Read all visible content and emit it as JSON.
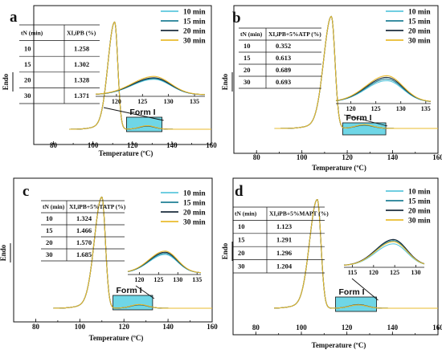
{
  "figure": {
    "colors": {
      "10 min": "#5bc7dd",
      "15 min": "#1f7f95",
      "20 min": "#1b2d3d",
      "30 min": "#e9bb2e",
      "highlight": "#6fd6e6"
    }
  },
  "chart_data": [
    {
      "type": "line",
      "panel_label": "a",
      "xlabel": "Temperature (ºC)",
      "ylabel": "Endo",
      "xlim": [
        70,
        160
      ],
      "xticks": [
        "80",
        "100",
        "120",
        "140",
        "160"
      ],
      "legend": [
        "10 min",
        "15 min",
        "20 min",
        "30 min"
      ],
      "legend_position": "top-right",
      "series": [
        {
          "name": "10 min",
          "peak_x": 111.0,
          "formI_peak_x": 127.5,
          "formI_height": 0.8
        },
        {
          "name": "15 min",
          "peak_x": 111.0,
          "formI_peak_x": 127.5,
          "formI_height": 0.84
        },
        {
          "name": "20 min",
          "peak_x": 111.0,
          "formI_peak_x": 127.5,
          "formI_height": 0.88
        },
        {
          "name": "30 min",
          "peak_x": 111.0,
          "formI_peak_x": 127.5,
          "formI_height": 0.95
        }
      ],
      "table": {
        "header_t": "tN (min)",
        "header_x": "XI,iPB (%)",
        "rows": [
          [
            "10",
            "1.258"
          ],
          [
            "15",
            "1.302"
          ],
          [
            "20",
            "1.328"
          ],
          [
            "30",
            "1.371"
          ]
        ]
      },
      "inset": {
        "xlim": [
          116,
          137
        ],
        "xticks": [
          "120",
          "125",
          "130",
          "135"
        ]
      },
      "highlight_range": [
        117,
        135
      ],
      "annotation": "Form I"
    },
    {
      "type": "line",
      "panel_label": "b",
      "xlabel": "Temperature (ºC)",
      "ylabel": "Endo",
      "xlim": [
        70,
        160
      ],
      "xticks": [
        "80",
        "100",
        "120",
        "140",
        "160"
      ],
      "legend": [
        "10 min",
        "15 min",
        "20 min",
        "30 min"
      ],
      "legend_position": "top-right",
      "series": [
        {
          "name": "10 min",
          "peak_x": 113.0,
          "formI_peak_x": 127.5,
          "formI_height": 0.78
        },
        {
          "name": "15 min",
          "peak_x": 113.0,
          "formI_peak_x": 127.5,
          "formI_height": 0.84
        },
        {
          "name": "20 min",
          "peak_x": 113.0,
          "formI_peak_x": 127.5,
          "formI_height": 0.9
        },
        {
          "name": "30 min",
          "peak_x": 113.0,
          "formI_peak_x": 127.5,
          "formI_height": 0.96
        }
      ],
      "table": {
        "header_t": "tN (min)",
        "header_x": "XI,iPB+5%ATP (%)",
        "rows": [
          [
            "10",
            "0.352"
          ],
          [
            "15",
            "0.613"
          ],
          [
            "20",
            "0.689"
          ],
          [
            "30",
            "0.693"
          ]
        ]
      },
      "inset": {
        "xlim": [
          117,
          136
        ],
        "xticks": [
          "120",
          "125",
          "130",
          "135"
        ]
      },
      "highlight_range": [
        118,
        137
      ],
      "annotation": "Form I"
    },
    {
      "type": "line",
      "panel_label": "c",
      "xlabel": "Temperature (ºC)",
      "ylabel": "Endo",
      "xlim": [
        70,
        160
      ],
      "xticks": [
        "80",
        "100",
        "120",
        "140",
        "160"
      ],
      "legend": [
        "10 min",
        "15 min",
        "20 min",
        "30 min"
      ],
      "legend_position": "top-right",
      "series": [
        {
          "name": "10 min",
          "peak_x": 110.0,
          "formI_peak_x": 127.0,
          "formI_height": 0.82
        },
        {
          "name": "15 min",
          "peak_x": 110.0,
          "formI_peak_x": 127.0,
          "formI_height": 0.87
        },
        {
          "name": "20 min",
          "peak_x": 110.0,
          "formI_peak_x": 127.0,
          "formI_height": 0.92
        },
        {
          "name": "30 min",
          "peak_x": 110.0,
          "formI_peak_x": 127.0,
          "formI_height": 0.97
        }
      ],
      "table": {
        "header_t": "tN (min)",
        "header_x": "XI,iPB+5%TATP (%)",
        "rows": [
          [
            "10",
            "1.324"
          ],
          [
            "15",
            "1.466"
          ],
          [
            "20",
            "1.570"
          ],
          [
            "30",
            "1.685"
          ]
        ]
      },
      "inset": {
        "xlim": [
          117,
          136
        ],
        "xticks": [
          "120",
          "125",
          "130",
          "135"
        ]
      },
      "highlight_range": [
        115,
        133
      ],
      "annotation": "Form I"
    },
    {
      "type": "line",
      "panel_label": "d",
      "xlabel": "Temperature (ºC)",
      "ylabel": "Endo",
      "xlim": [
        70,
        160
      ],
      "xticks": [
        "80",
        "100",
        "120",
        "140",
        "160"
      ],
      "legend": [
        "10 min",
        "15 min",
        "20 min",
        "30 min"
      ],
      "legend_position": "top-right",
      "series": [
        {
          "name": "10 min",
          "peak_x": 107.0,
          "formI_peak_x": 125.0,
          "formI_height": 0.8
        },
        {
          "name": "15 min",
          "peak_x": 107.0,
          "formI_peak_x": 125.0,
          "formI_height": 0.92
        },
        {
          "name": "20 min",
          "peak_x": 107.0,
          "formI_peak_x": 125.0,
          "formI_height": 0.96
        },
        {
          "name": "30 min",
          "peak_x": 107.0,
          "formI_peak_x": 125.0,
          "formI_height": 0.88
        }
      ],
      "table": {
        "header_t": "tN (min)",
        "header_x": "XI,iPB+5%MAPT (%)",
        "rows": [
          [
            "10",
            "1.123"
          ],
          [
            "15",
            "1.291"
          ],
          [
            "20",
            "1.296"
          ],
          [
            "30",
            "1.204"
          ]
        ]
      },
      "inset": {
        "xlim": [
          113,
          132
        ],
        "xticks": [
          "115",
          "120",
          "125",
          "130"
        ]
      },
      "highlight_range": [
        115,
        133
      ],
      "annotation": "Form I"
    }
  ]
}
